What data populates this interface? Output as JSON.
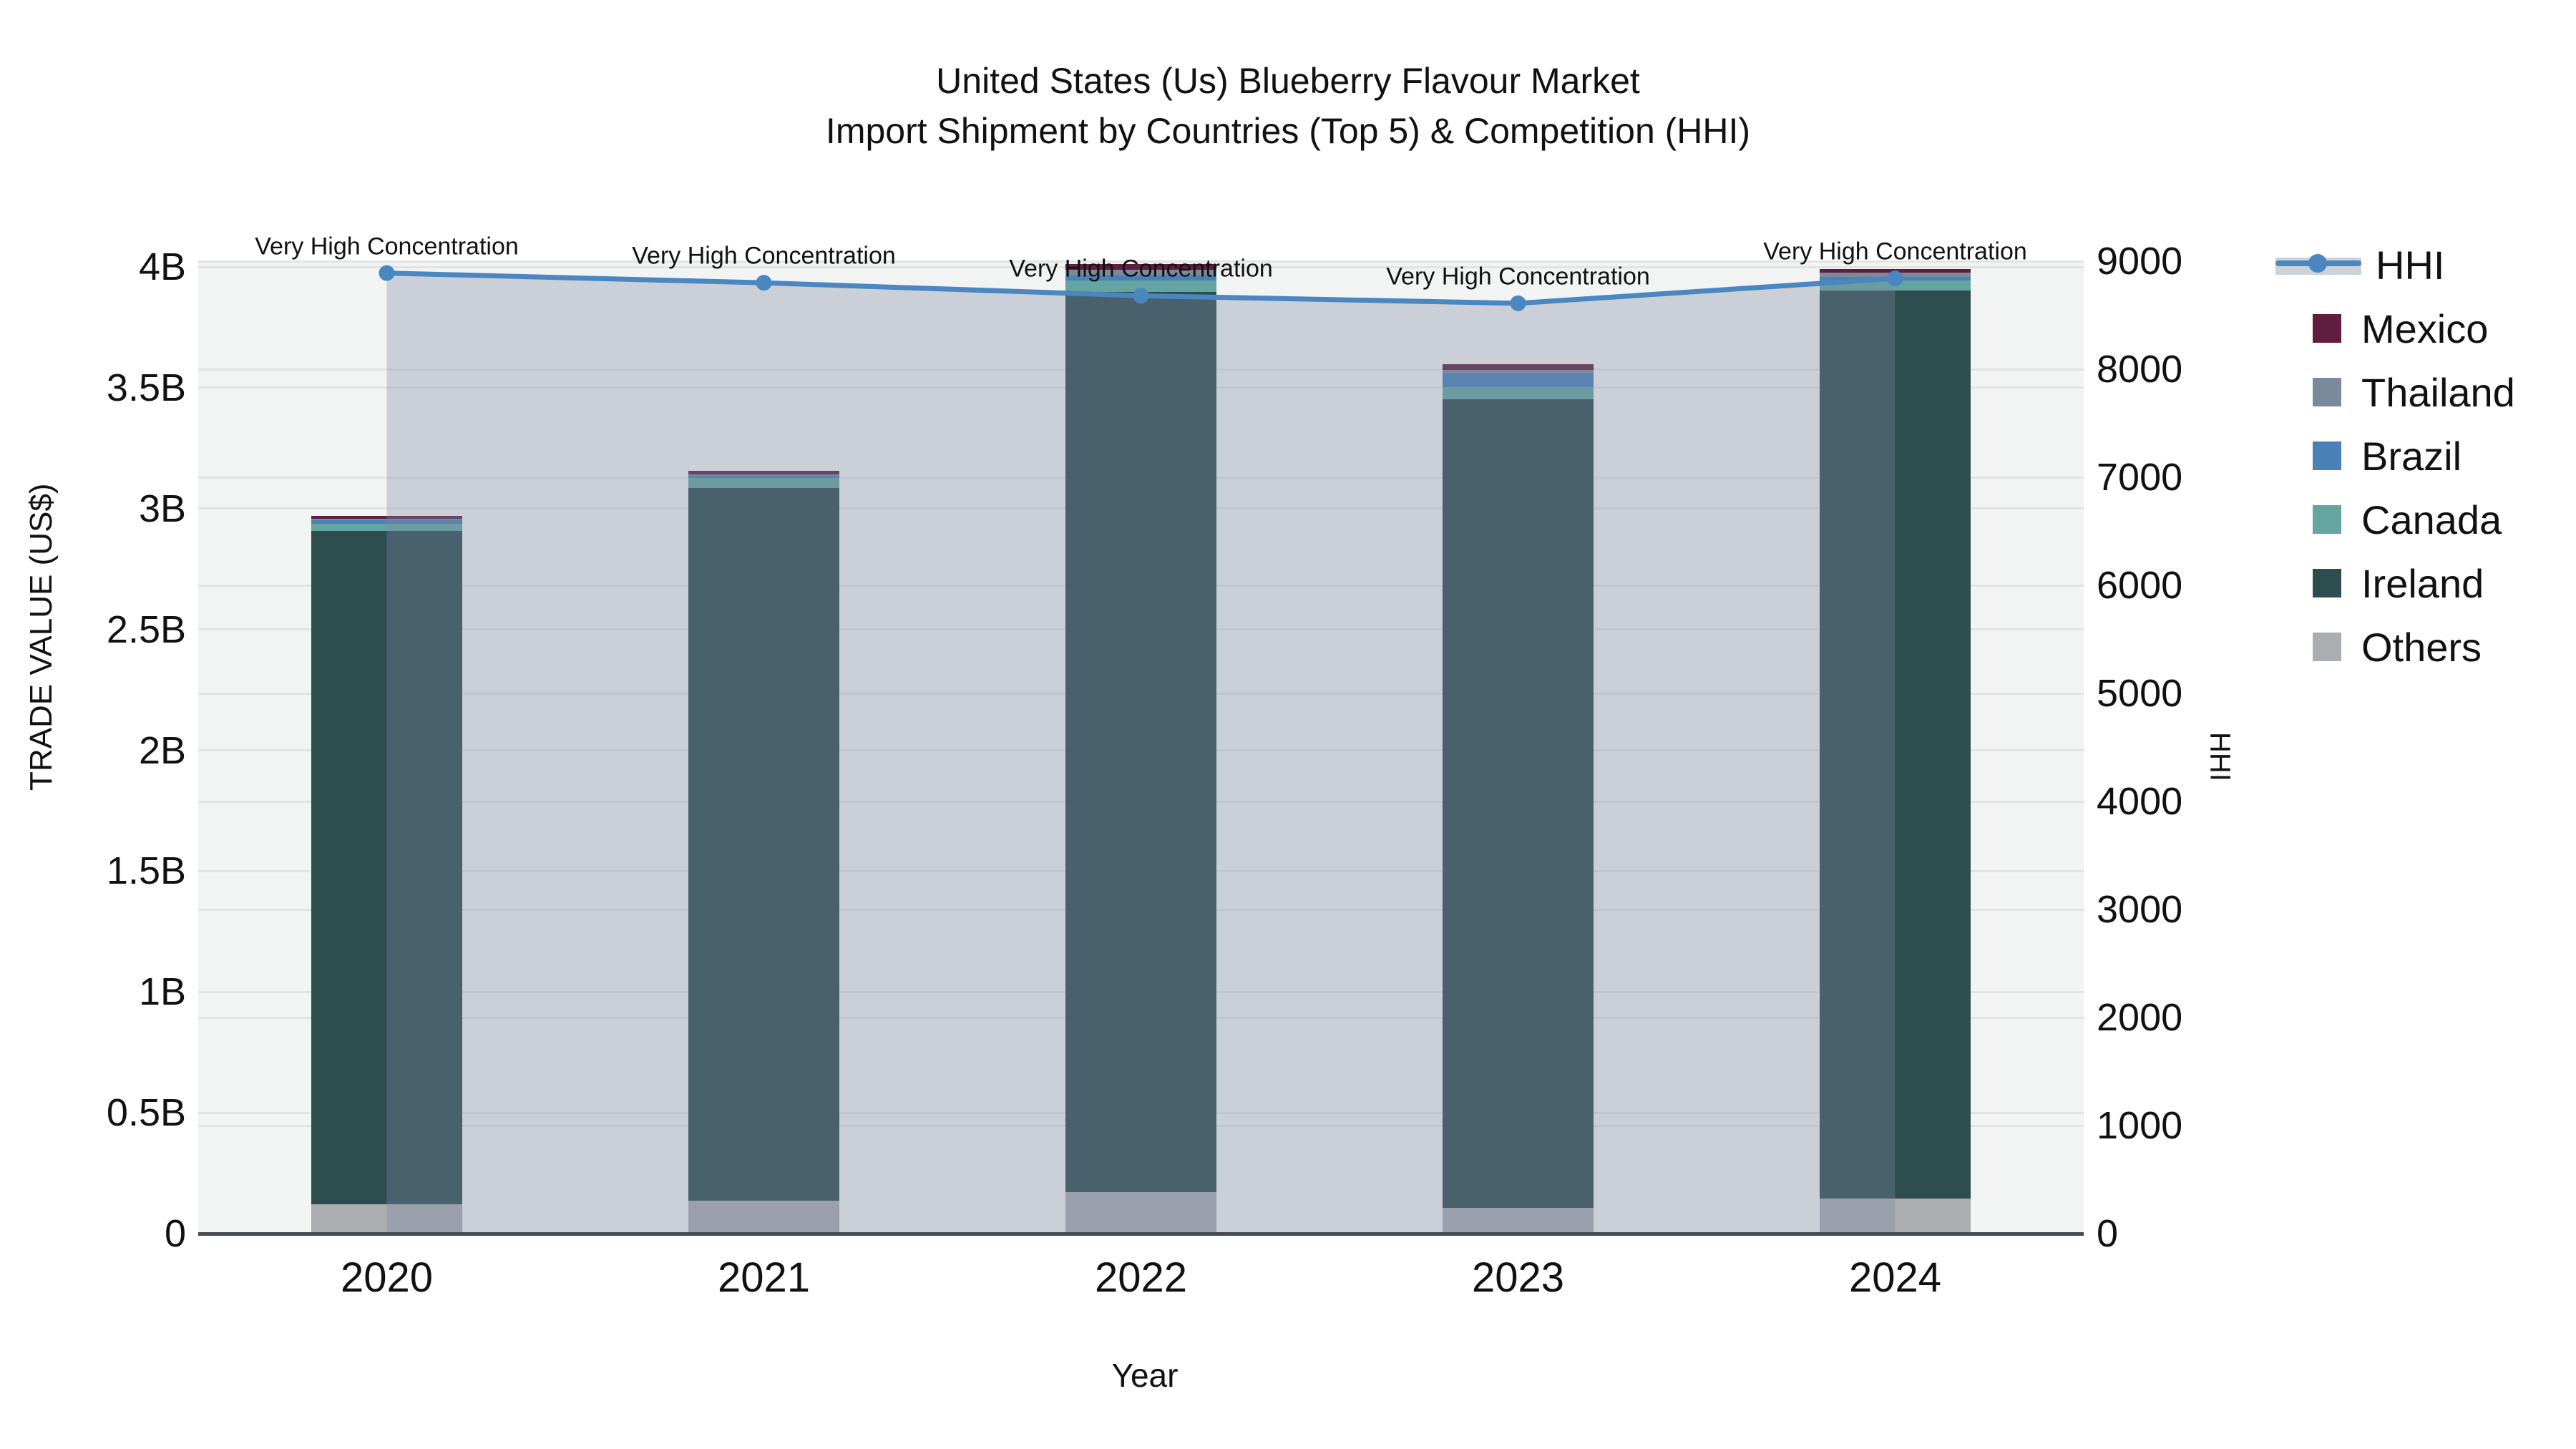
{
  "title": {
    "line1": "United States (Us) Blueberry Flavour Market",
    "line2": "Import Shipment by Countries (Top 5) & Competition (HHI)"
  },
  "colors": {
    "mexico": "#611d3f",
    "thailand": "#7a8a9a",
    "brazil": "#4a80b6",
    "canada": "#64a5a2",
    "ireland": "#2e4d4f",
    "others": "#abaeb0",
    "hhi_line": "#4a86c0",
    "hhi_area_fill": "rgba(125,139,165,0.34)",
    "plot_bg": "#f2f3f3",
    "gridline": "#e2e4e4",
    "axis_line": "#474b4f"
  },
  "chart_data": {
    "type": "bar+line",
    "title": "United States (Us) Blueberry Flavour Market Import Shipment by Countries (Top 5) & Competition (HHI)",
    "xlabel": "Year",
    "ylabel_left": "TRADE VALUE (US$)",
    "ylabel_right": "HHI",
    "categories": [
      "2020",
      "2021",
      "2022",
      "2023",
      "2024"
    ],
    "bar_unit": "billions USD",
    "series": [
      {
        "name": "Mexico",
        "color": "#611d3f",
        "values_B": [
          0.012,
          0.015,
          0.022,
          0.024,
          0.015
        ]
      },
      {
        "name": "Thailand",
        "color": "#7a8a9a",
        "values_B": [
          0.004,
          0.004,
          0.024,
          0.015,
          0.019
        ]
      },
      {
        "name": "Brazil",
        "color": "#4a80b6",
        "values_B": [
          0.015,
          0.01,
          0.02,
          0.058,
          0.015
        ]
      },
      {
        "name": "Canada",
        "color": "#64a5a2",
        "values_B": [
          0.029,
          0.041,
          0.049,
          0.049,
          0.039
        ]
      },
      {
        "name": "Ireland",
        "color": "#2e4d4f",
        "values_B": [
          2.787,
          2.949,
          3.724,
          3.345,
          3.758
        ]
      },
      {
        "name": "Others",
        "color": "#abaeb0",
        "values_B": [
          0.122,
          0.137,
          0.172,
          0.108,
          0.146
        ]
      }
    ],
    "stack_bottom_up": [
      "Others",
      "Ireland",
      "Canada",
      "Brazil",
      "Thailand",
      "Mexico"
    ],
    "bar_totals_B": [
      2.969,
      3.156,
      4.011,
      3.599,
      3.992
    ],
    "hhi": {
      "name": "HHI",
      "values": [
        8890,
        8800,
        8680,
        8610,
        8840
      ],
      "line_color": "#4a86c0"
    },
    "annotations": [
      "Very High Concentration",
      "Very High Concentration",
      "Very High Concentration",
      "Very High Concentration",
      "Very High Concentration"
    ],
    "yticks_left": {
      "values_B": [
        0,
        0.5,
        1,
        1.5,
        2,
        2.5,
        3,
        3.5,
        4
      ],
      "labels": [
        "0",
        "0.5B",
        "1B",
        "1.5B",
        "2B",
        "2.5B",
        "3B",
        "3.5B",
        "4B"
      ]
    },
    "yticks_right": {
      "values": [
        0,
        1000,
        2000,
        3000,
        4000,
        5000,
        6000,
        7000,
        8000,
        9000
      ],
      "labels": [
        "0",
        "1000",
        "2000",
        "3000",
        "4000",
        "5000",
        "6000",
        "7000",
        "8000",
        "9000"
      ]
    },
    "ylim_left_B": [
      0,
      4.024
    ],
    "ylim_right": [
      0,
      9000
    ],
    "grid": true,
    "legend_position": "right"
  },
  "legend": {
    "items": [
      {
        "label": "HHI",
        "kind": "line",
        "color": "#4a86c0"
      },
      {
        "label": "Mexico",
        "kind": "swatch",
        "color": "#611d3f"
      },
      {
        "label": "Thailand",
        "kind": "swatch",
        "color": "#7a8a9a"
      },
      {
        "label": "Brazil",
        "kind": "swatch",
        "color": "#4a80b6"
      },
      {
        "label": "Canada",
        "kind": "swatch",
        "color": "#64a5a2"
      },
      {
        "label": "Ireland",
        "kind": "swatch",
        "color": "#2e4d4f"
      },
      {
        "label": "Others",
        "kind": "swatch",
        "color": "#abaeb0"
      }
    ]
  }
}
